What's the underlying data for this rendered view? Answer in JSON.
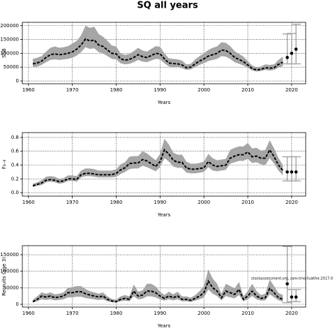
{
  "title": "SQ all years",
  "chart_data": [
    {
      "type": "line",
      "ylabel": "SSB",
      "xlabel": "Years",
      "x": [
        1961,
        1962,
        1963,
        1964,
        1965,
        1966,
        1967,
        1968,
        1969,
        1970,
        1971,
        1972,
        1973,
        1974,
        1975,
        1976,
        1977,
        1978,
        1979,
        1980,
        1981,
        1982,
        1983,
        1984,
        1985,
        1986,
        1987,
        1988,
        1989,
        1990,
        1991,
        1992,
        1993,
        1994,
        1995,
        1996,
        1997,
        1998,
        1999,
        2000,
        2001,
        2002,
        2003,
        2004,
        2005,
        2006,
        2007,
        2008,
        2009,
        2010,
        2011,
        2012,
        2013,
        2014,
        2015,
        2016,
        2017,
        2018
      ],
      "values": [
        62000,
        65000,
        72000,
        85000,
        95000,
        98000,
        95000,
        97000,
        100000,
        105000,
        115000,
        130000,
        152000,
        145000,
        148000,
        130000,
        125000,
        112000,
        100000,
        98000,
        80000,
        75000,
        78000,
        85000,
        95000,
        88000,
        85000,
        92000,
        100000,
        98000,
        80000,
        65000,
        63000,
        62000,
        58000,
        48000,
        50000,
        62000,
        72000,
        80000,
        90000,
        95000,
        100000,
        112000,
        110000,
        100000,
        85000,
        78000,
        70000,
        58000,
        45000,
        40000,
        42000,
        48000,
        46000,
        48000,
        60000,
        68000
      ],
      "lower": [
        50000,
        52000,
        58000,
        68000,
        76000,
        78000,
        76000,
        78000,
        80000,
        84000,
        92000,
        104000,
        122000,
        116000,
        118000,
        104000,
        100000,
        90000,
        80000,
        78000,
        64000,
        60000,
        62000,
        68000,
        76000,
        70000,
        68000,
        74000,
        80000,
        78000,
        64000,
        52000,
        50000,
        50000,
        46000,
        40000,
        42000,
        50000,
        58000,
        64000,
        72000,
        76000,
        80000,
        90000,
        88000,
        80000,
        68000,
        62000,
        56000,
        48000,
        38000,
        34000,
        36000,
        40000,
        38000,
        40000,
        48000,
        54000
      ],
      "upper": [
        80000,
        84000,
        90000,
        106000,
        120000,
        125000,
        120000,
        122000,
        126000,
        135000,
        145000,
        165000,
        200000,
        192000,
        196000,
        170000,
        160000,
        145000,
        128000,
        125000,
        100000,
        94000,
        98000,
        108000,
        120000,
        110000,
        106000,
        116000,
        126000,
        124000,
        100000,
        82000,
        80000,
        78000,
        74000,
        60000,
        62000,
        78000,
        90000,
        100000,
        112000,
        120000,
        125000,
        140000,
        138000,
        126000,
        108000,
        98000,
        88000,
        72000,
        56000,
        50000,
        52000,
        60000,
        58000,
        60000,
        76000,
        88000
      ],
      "forecast_x": [
        2019,
        2020,
        2021
      ],
      "forecast": [
        85000,
        100000,
        115000
      ],
      "forecast_lower": [
        62000,
        62000,
        62000
      ],
      "forecast_upper": [
        170000,
        172000,
        205000
      ],
      "xlim": [
        1958.6,
        2023.2
      ],
      "ylim": [
        -10000,
        212000
      ],
      "xticks": [
        1960,
        1970,
        1980,
        1990,
        2000,
        2010,
        2020
      ],
      "yticks": [
        0,
        50000,
        100000,
        150000,
        200000
      ],
      "grid": true,
      "color": "#000000",
      "band_color": "#a6a6a6",
      "error_color": "#aaaaaa"
    },
    {
      "type": "line",
      "ylabel": "F₄₋₈",
      "xlabel": "Years",
      "x": [
        1961,
        1962,
        1963,
        1964,
        1965,
        1966,
        1967,
        1968,
        1969,
        1970,
        1971,
        1972,
        1973,
        1974,
        1975,
        1976,
        1977,
        1978,
        1979,
        1980,
        1981,
        1982,
        1983,
        1984,
        1985,
        1986,
        1987,
        1988,
        1989,
        1990,
        1991,
        1992,
        1993,
        1994,
        1995,
        1996,
        1997,
        1998,
        1999,
        2000,
        2001,
        2002,
        2003,
        2004,
        2005,
        2006,
        2007,
        2008,
        2009,
        2010,
        2011,
        2012,
        2013,
        2014,
        2015,
        2016,
        2017,
        2018
      ],
      "values": [
        0.1,
        0.12,
        0.14,
        0.18,
        0.19,
        0.18,
        0.16,
        0.17,
        0.2,
        0.2,
        0.19,
        0.26,
        0.28,
        0.28,
        0.27,
        0.26,
        0.26,
        0.26,
        0.26,
        0.28,
        0.33,
        0.36,
        0.42,
        0.43,
        0.43,
        0.48,
        0.46,
        0.42,
        0.38,
        0.45,
        0.62,
        0.56,
        0.47,
        0.44,
        0.44,
        0.36,
        0.34,
        0.34,
        0.35,
        0.36,
        0.45,
        0.4,
        0.38,
        0.39,
        0.4,
        0.5,
        0.53,
        0.55,
        0.55,
        0.59,
        0.52,
        0.53,
        0.5,
        0.5,
        0.62,
        0.52,
        0.4,
        0.32
      ],
      "lower": [
        0.08,
        0.1,
        0.11,
        0.15,
        0.16,
        0.15,
        0.13,
        0.14,
        0.17,
        0.17,
        0.16,
        0.22,
        0.24,
        0.24,
        0.23,
        0.22,
        0.22,
        0.22,
        0.22,
        0.23,
        0.27,
        0.3,
        0.34,
        0.35,
        0.35,
        0.39,
        0.37,
        0.34,
        0.31,
        0.37,
        0.5,
        0.45,
        0.38,
        0.36,
        0.36,
        0.29,
        0.28,
        0.28,
        0.29,
        0.3,
        0.37,
        0.32,
        0.31,
        0.32,
        0.33,
        0.42,
        0.44,
        0.46,
        0.46,
        0.49,
        0.43,
        0.44,
        0.41,
        0.4,
        0.5,
        0.42,
        0.32,
        0.25
      ],
      "upper": [
        0.13,
        0.15,
        0.18,
        0.23,
        0.24,
        0.23,
        0.2,
        0.21,
        0.25,
        0.25,
        0.24,
        0.32,
        0.35,
        0.35,
        0.34,
        0.32,
        0.32,
        0.32,
        0.32,
        0.34,
        0.41,
        0.44,
        0.52,
        0.53,
        0.53,
        0.6,
        0.57,
        0.52,
        0.47,
        0.56,
        0.78,
        0.7,
        0.58,
        0.55,
        0.55,
        0.45,
        0.42,
        0.42,
        0.43,
        0.45,
        0.56,
        0.5,
        0.47,
        0.48,
        0.49,
        0.62,
        0.65,
        0.67,
        0.67,
        0.72,
        0.64,
        0.65,
        0.61,
        0.62,
        0.76,
        0.64,
        0.5,
        0.4
      ],
      "forecast_x": [
        2019,
        2020,
        2021
      ],
      "forecast": [
        0.3,
        0.3,
        0.3
      ],
      "forecast_lower": [
        0.17,
        0.17,
        0.17
      ],
      "forecast_upper": [
        0.52,
        0.52,
        0.52
      ],
      "xlim": [
        1958.6,
        2023.2
      ],
      "ylim": [
        -0.05,
        0.87
      ],
      "xticks": [
        1960,
        1970,
        1980,
        1990,
        2000,
        2010,
        2020
      ],
      "yticks": [
        {
          "value": 0,
          "label": "0.0"
        },
        0.2,
        0.4,
        0.6,
        0.8
      ],
      "grid": true,
      "color": "#000000",
      "band_color": "#a6a6a6",
      "error_color": "#aaaaaa"
    },
    {
      "type": "line",
      "ylabel": "Recruits (age 3)",
      "xlabel": "Years",
      "annotation": "stockassessment.org, sam-tmo-fualthe-2017-0",
      "x": [
        1961,
        1962,
        1963,
        1964,
        1965,
        1966,
        1967,
        1968,
        1969,
        1970,
        1971,
        1972,
        1973,
        1974,
        1975,
        1976,
        1977,
        1978,
        1979,
        1980,
        1981,
        1982,
        1983,
        1984,
        1985,
        1986,
        1987,
        1988,
        1989,
        1990,
        1991,
        1992,
        1993,
        1994,
        1995,
        1996,
        1997,
        1998,
        1999,
        2000,
        2001,
        2002,
        2003,
        2004,
        2005,
        2006,
        2007,
        2008,
        2009,
        2010,
        2011,
        2012,
        2013,
        2014,
        2015,
        2016,
        2017,
        2018
      ],
      "values": [
        8000,
        15000,
        25000,
        22000,
        25000,
        20000,
        22000,
        25000,
        35000,
        35000,
        38000,
        38000,
        32000,
        28000,
        25000,
        22000,
        25000,
        15000,
        10000,
        8000,
        15000,
        18000,
        15000,
        40000,
        25000,
        28000,
        40000,
        40000,
        35000,
        25000,
        18000,
        25000,
        20000,
        25000,
        15000,
        15000,
        12000,
        18000,
        25000,
        35000,
        70000,
        50000,
        40000,
        20000,
        40000,
        35000,
        30000,
        45000,
        15000,
        25000,
        40000,
        25000,
        18000,
        20000,
        48000,
        35000,
        20000,
        15000
      ],
      "lower": [
        5000,
        9000,
        15000,
        13000,
        15000,
        12000,
        13000,
        15000,
        21000,
        21000,
        23000,
        23000,
        19000,
        17000,
        15000,
        13000,
        15000,
        9000,
        6000,
        5000,
        9000,
        11000,
        9000,
        24000,
        15000,
        17000,
        24000,
        24000,
        21000,
        15000,
        11000,
        15000,
        12000,
        15000,
        9000,
        9000,
        7000,
        11000,
        15000,
        21000,
        45000,
        32000,
        25000,
        12000,
        25000,
        21000,
        18000,
        28000,
        9000,
        15000,
        25000,
        15000,
        11000,
        12000,
        30000,
        21000,
        12000,
        8000
      ],
      "upper": [
        14000,
        24000,
        36000,
        32000,
        36000,
        30000,
        32000,
        36000,
        50000,
        52000,
        55000,
        55000,
        46000,
        40000,
        36000,
        32000,
        36000,
        24000,
        16000,
        14000,
        24000,
        28000,
        24000,
        60000,
        38000,
        42000,
        62000,
        62000,
        54000,
        38000,
        28000,
        38000,
        30000,
        38000,
        24000,
        24000,
        20000,
        28000,
        40000,
        55000,
        105000,
        78000,
        62000,
        32000,
        62000,
        55000,
        48000,
        68000,
        24000,
        40000,
        62000,
        40000,
        28000,
        32000,
        75000,
        55000,
        34000,
        28000
      ],
      "forecast_x": [
        2019,
        2020,
        2021
      ],
      "forecast": [
        62000,
        22000,
        22000
      ],
      "forecast_lower": [
        5000,
        8000,
        8000
      ],
      "forecast_upper": [
        175000,
        45000,
        45000
      ],
      "xlim": [
        1958.6,
        2023.2
      ],
      "ylim": [
        -8450,
        177500
      ],
      "xticks": [
        1960,
        1970,
        1980,
        1990,
        2000,
        2010,
        2020
      ],
      "yticks": [
        0,
        50000,
        100000,
        150000
      ],
      "grid": true,
      "color": "#000000",
      "band_color": "#a6a6a6",
      "error_color": "#aaaaaa"
    }
  ]
}
